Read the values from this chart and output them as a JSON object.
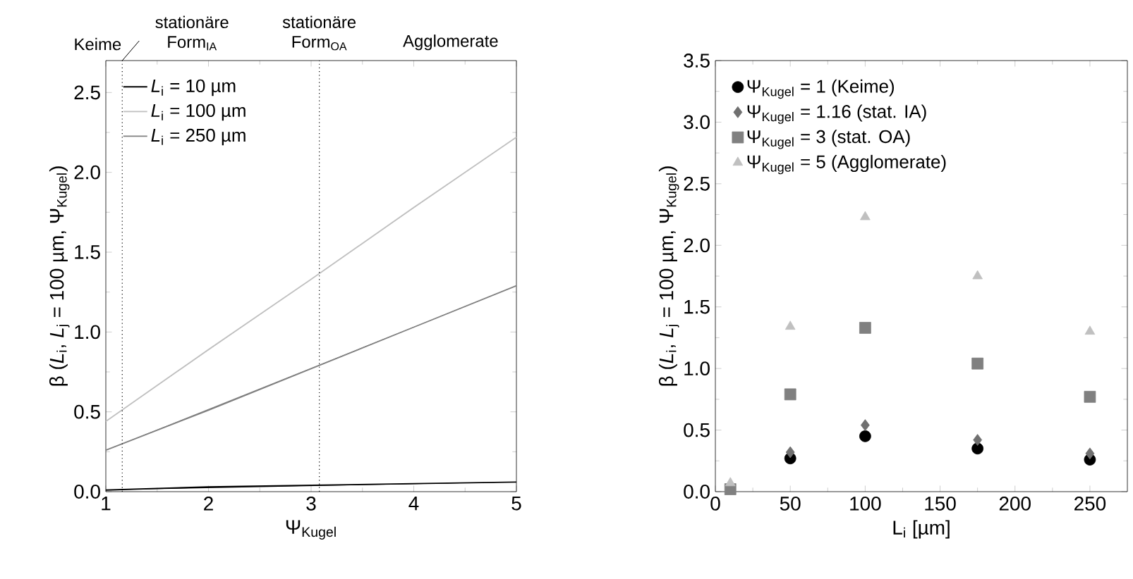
{
  "chart_data": [
    {
      "type": "line",
      "x": [
        1,
        2,
        3,
        4,
        5
      ],
      "xlabel": "Ψ$_{Kugel}$",
      "ylabel": "β (*L*$_{i}$, *L*$_{j}$ = 100 µm, Ψ$_{Kugel}$)",
      "xlim": [
        1,
        5
      ],
      "ylim": [
        0,
        2.7
      ],
      "xticks": [
        1,
        2,
        3,
        4,
        5
      ],
      "yticks": [
        {
          "value": 0,
          "label": "0.0"
        },
        0.5,
        {
          "value": 1,
          "label": "1.0"
        },
        1.5,
        {
          "value": 2,
          "label": "2.0"
        },
        2.5
      ],
      "legend": "top left",
      "grid": false,
      "series": [
        {
          "name": "*L*$_{i}$ = 10 µm",
          "color": "#000000",
          "values": [
            0.01,
            0.03,
            0.04,
            0.05,
            0.06
          ]
        },
        {
          "name": "*L*$_{i}$ = 100 µm",
          "color": "#c0c0c0",
          "values": [
            0.44,
            0.89,
            1.33,
            1.78,
            2.22
          ]
        },
        {
          "name": "*L*$_{i}$ = 250 µm",
          "color": "#808080",
          "values": [
            0.26,
            0.51,
            0.77,
            1.03,
            1.29
          ]
        }
      ],
      "ref_lines": [
        {
          "axis": "x",
          "value": 1.16,
          "line_style": "dotted",
          "color": "#000000"
        },
        {
          "axis": "x",
          "value": 3.08,
          "line_style": "dotted",
          "color": "#000000"
        }
      ],
      "annotations": [
        "Keime",
        "stationäre Form$_{IA}$",
        "stationäre Form$_{OA}$",
        "Agglomerate"
      ]
    },
    {
      "type": "scatter",
      "x": [
        10,
        50,
        100,
        175,
        250
      ],
      "xlabel": "L$_{i}$ [µm]",
      "ylabel": "β (*L*$_{i}$, *L*$_{j}$ = 100 µm, Ψ$_{Kugel}$)",
      "xlim": [
        0,
        275
      ],
      "ylim": [
        0,
        3.5
      ],
      "xticks": [
        0,
        50,
        100,
        150,
        200,
        250
      ],
      "yticks": [
        {
          "value": 0,
          "label": "0.0"
        },
        0.5,
        {
          "value": 1,
          "label": "1.0"
        },
        1.5,
        {
          "value": 2,
          "label": "2.0"
        },
        2.5,
        {
          "value": 3,
          "label": "3.0"
        },
        3.5
      ],
      "legend": "top left",
      "grid": false,
      "series": [
        {
          "name": "Ψ$_{Kugel}$ = 1  (Keime)",
          "color": "#000000",
          "marker": "circle",
          "values": [
            null,
            0.27,
            0.45,
            0.35,
            0.26
          ]
        },
        {
          "name": "Ψ$_{Kugel}$ = 1.16 (stat. IA)",
          "color": "#707070",
          "marker": "diamond",
          "values": [
            null,
            0.32,
            0.54,
            0.42,
            0.31
          ]
        },
        {
          "name": "Ψ$_{Kugel}$ = 3 (stat. OA)",
          "color": "#808080",
          "marker": "square",
          "values": [
            0.02,
            0.79,
            1.33,
            1.04,
            0.77
          ]
        },
        {
          "name": "Ψ$_{Kugel}$ = 5 (Agglomerate)",
          "color": "#c0c0c0",
          "marker": "triangle",
          "values": [
            0.07,
            1.34,
            2.23,
            1.75,
            1.3
          ]
        }
      ]
    }
  ]
}
